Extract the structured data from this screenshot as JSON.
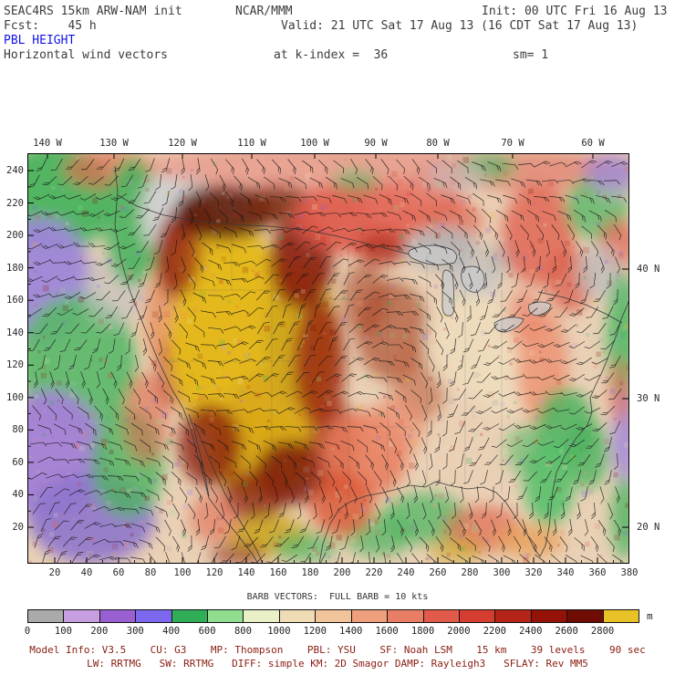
{
  "header": {
    "model_title": "SEAC4RS 15km ARW-NAM init",
    "org": "NCAR/MMM",
    "init_time": "Init: 00 UTC Fri 16 Aug 13",
    "forecast_hour": "Fcst:    45 h",
    "valid_time": "Valid: 21 UTC Sat 17 Aug 13 (16 CDT Sat 17 Aug 13)",
    "field_name": "PBL HEIGHT",
    "vector_label": "Horizontal wind vectors",
    "k_index": "at k-index =  36",
    "smoothing": "sm= 1"
  },
  "map": {
    "top_axis": [
      "140 W",
      "130 W",
      "120 W",
      "110 W",
      "100 W",
      "90 W",
      "80 W",
      "70 W",
      "60 W"
    ],
    "right_axis": [
      "40 N",
      "30 N",
      "20 N"
    ],
    "left_axis": [
      "240",
      "220",
      "200",
      "180",
      "160",
      "140",
      "120",
      "100",
      "80",
      "60",
      "40",
      "20"
    ],
    "bottom_axis": [
      "20",
      "40",
      "60",
      "80",
      "100",
      "120",
      "140",
      "160",
      "180",
      "200",
      "220",
      "240",
      "260",
      "280",
      "300",
      "320",
      "340",
      "360",
      "380"
    ]
  },
  "colorbar": {
    "caption": "BARB VECTORS:  FULL BARB = 10 kts",
    "tick_labels": [
      "0",
      "100",
      "200",
      "300",
      "400",
      "600",
      "800",
      "1000",
      "1200",
      "1400",
      "1600",
      "1800",
      "2000",
      "2200",
      "2400",
      "2600",
      "2800"
    ],
    "unit": "m",
    "colors": [
      "#aaaaaa",
      "#c79fe0",
      "#9a5fd0",
      "#7b68ee",
      "#2fae57",
      "#8fdd8f",
      "#e9efc6",
      "#efdcb5",
      "#f2c49a",
      "#ef9e7e",
      "#e97e66",
      "#e25a4a",
      "#d43d2f",
      "#b52418",
      "#951208",
      "#6f0d04",
      "#e8c227"
    ]
  },
  "footer": {
    "line1": "Model Info: V3.5    CU: G3    MP: Thompson    PBL: YSU    SF: Noah LSM    15 km    39 levels    90 sec",
    "line2": "LW: RRTMG   SW: RRTMG   DIFF: simple KM: 2D Smagor DAMP: Rayleigh3   SFLAY: Rev MM5"
  }
}
